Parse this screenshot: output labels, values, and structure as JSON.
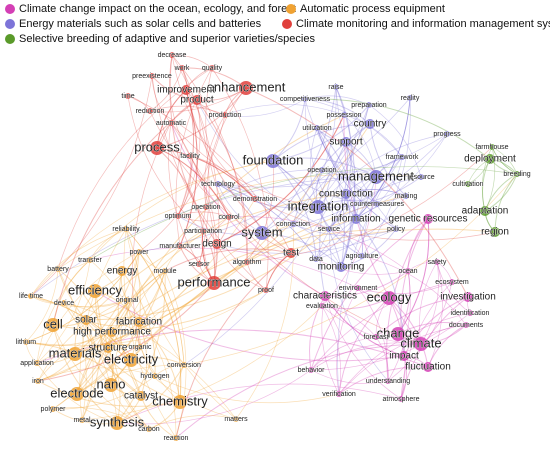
{
  "clusters": [
    {
      "name": "Climate change impact on the ocean, ecology, and forest",
      "color": "#d43fb5",
      "nodes": [
        "ocean",
        "environment",
        "ecology",
        "characteristics",
        "evaluation",
        "safety",
        "ecosystem",
        "investigation",
        "identification",
        "documents",
        "change",
        "climate",
        "forecast",
        "impact",
        "fluctuation",
        "behavior",
        "verification",
        "understanding",
        "atmosphere",
        "genetic resources"
      ]
    },
    {
      "name": "Automatic process equipment",
      "color": "#f0a232",
      "nodes": [
        "reliability",
        "power",
        "energy",
        "transfer",
        "battery",
        "module",
        "efficiency",
        "life time",
        "device",
        "solar",
        "original",
        "cell",
        "high performance",
        "fabrication",
        "materials",
        "structure",
        "lithium",
        "organic",
        "electricity",
        "application",
        "conversion",
        "hydrogen",
        "iron",
        "nano",
        "catalyst",
        "electrode",
        "chemistry",
        "polymer",
        "metal",
        "synthesis",
        "carbon",
        "reaction",
        "matters"
      ]
    },
    {
      "name": "Energy materials such as solar cells and batteries",
      "color": "#7d74d8",
      "nodes": [
        "raise",
        "competitiveness",
        "preparation",
        "possession",
        "country",
        "utilization",
        "support",
        "foundation",
        "management",
        "construction",
        "integration",
        "system",
        "information",
        "countermeasures",
        "making",
        "resource",
        "framework",
        "operation",
        "policy",
        "service",
        "connection",
        "data",
        "monitoring",
        "agriculture",
        "technology",
        "reality",
        "progress"
      ]
    },
    {
      "name": "Climate monitoring and information management system",
      "color": "#e0403c",
      "nodes": [
        "decrease",
        "work",
        "preexistence",
        "quality",
        "enhancement",
        "improvement",
        "time",
        "product",
        "reduction",
        "production",
        "automatic",
        "process",
        "facility",
        "performance",
        "test",
        "design",
        "participation",
        "algorithm",
        "sensor",
        "manufacturer",
        "operation",
        "control",
        "optimum",
        "demonstration",
        "proof"
      ]
    },
    {
      "name": "Selective breeding of adaptive and superior varieties/species",
      "color": "#5a9a2a",
      "nodes": [
        "farmhouse",
        "deployment",
        "breeding",
        "cultivation",
        "adaptation",
        "region"
      ]
    }
  ]
}
